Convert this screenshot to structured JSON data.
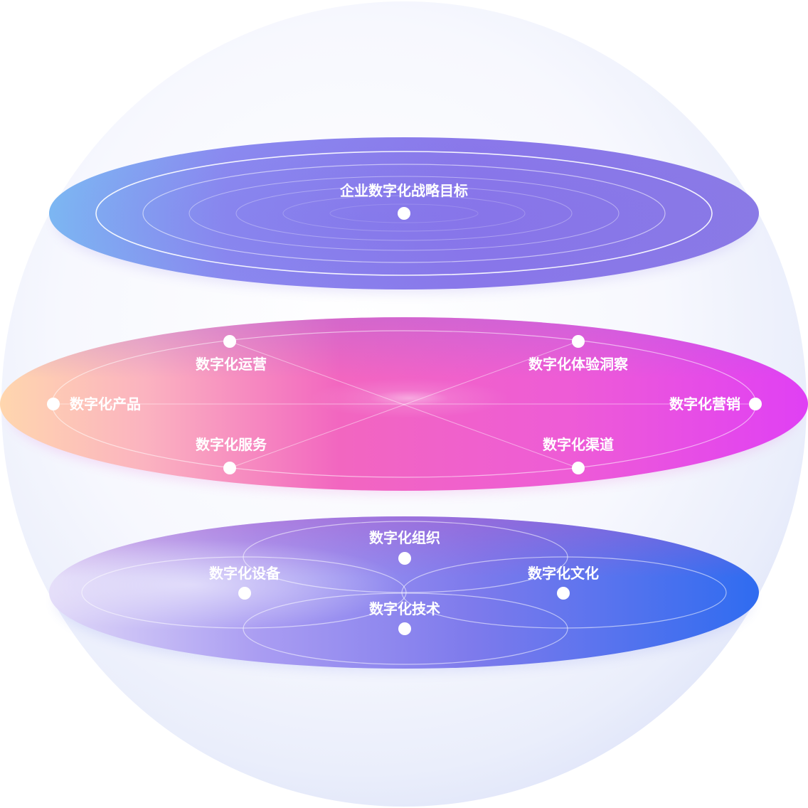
{
  "layers": {
    "strategy": {
      "goal": "企业数字化战略目标"
    },
    "business": {
      "operations": "数字化运营",
      "experience_insight": "数字化体验洞察",
      "product": "数字化产品",
      "marketing": "数字化营销",
      "service": "数字化服务",
      "channel": "数字化渠道"
    },
    "foundation": {
      "organization": "数字化组织",
      "equipment": "数字化设备",
      "culture": "数字化文化",
      "technology": "数字化技术"
    }
  },
  "colors": {
    "top_layer": [
      "#7db8f2",
      "#8a7fee",
      "#8b7ae8"
    ],
    "middle_layer": [
      "#fdd0b0",
      "#f268c0",
      "#e244f0"
    ],
    "bottom_layer": [
      "#dcd6fa",
      "#8a7cee",
      "#2d6ef0"
    ],
    "sphere": "#eef1fc"
  }
}
